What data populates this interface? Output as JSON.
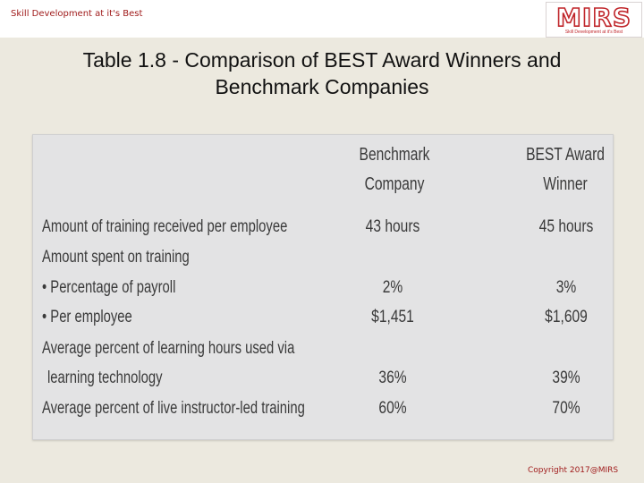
{
  "header": {
    "tagline": "Skill Development at it's Best",
    "logo_text": "MIRS",
    "logo_subtext": "Skill Development at it's Best"
  },
  "slide": {
    "title_line1": "Table 1.8 - Comparison of BEST Award Winners and",
    "title_line2": "Benchmark Companies"
  },
  "table": {
    "columns": [
      {
        "line1": "Benchmark",
        "line2": "Company"
      },
      {
        "line1": "BEST Award",
        "line2": "Winner"
      }
    ],
    "rows": [
      {
        "label": "Amount of training received per employee",
        "benchmark": "43 hours",
        "winner": "45 hours"
      },
      {
        "label": "Amount spent on training",
        "benchmark": "",
        "winner": ""
      },
      {
        "label": "• Percentage of payroll",
        "benchmark": "2%",
        "winner": "3%"
      },
      {
        "label": "• Per employee",
        "benchmark": "$1,451",
        "winner": "$1,609"
      },
      {
        "label": "Average percent of learning hours used via",
        "benchmark": "",
        "winner": ""
      },
      {
        "label": "learning technology",
        "benchmark": "36%",
        "winner": "39%"
      },
      {
        "label": "Average percent of live instructor-led training",
        "benchmark": "60%",
        "winner": "70%"
      }
    ]
  },
  "footer": {
    "copyright": "Copyright 2017@MIRS"
  },
  "colors": {
    "brand_red": "#c0262b",
    "background": "#ece9df",
    "table_background": "#e3e3e4"
  }
}
